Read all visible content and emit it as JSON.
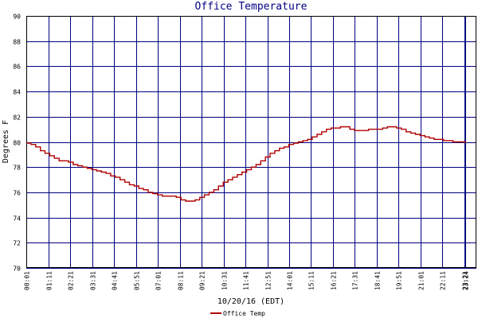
{
  "chart_data": {
    "type": "line",
    "title": "Office Temperature",
    "xlabel": "10/20/16 (EDT)",
    "ylabel": "Degrees F",
    "ylim": [
      70,
      90
    ],
    "yticks": [
      70,
      72,
      74,
      76,
      78,
      80,
      82,
      84,
      86,
      88,
      90
    ],
    "xlim": [
      0,
      1440
    ],
    "xticks": [
      "00:01",
      "01:11",
      "02:21",
      "03:31",
      "04:41",
      "05:51",
      "07:01",
      "08:11",
      "09:21",
      "10:31",
      "11:41",
      "12:51",
      "14:01",
      "15:11",
      "16:21",
      "17:31",
      "18:41",
      "19:51",
      "21:01",
      "22:11",
      "23:21",
      "23:24"
    ],
    "grid": true,
    "legend_position": "bottom-left",
    "colors": {
      "series": "#b00000",
      "grid": "#000080",
      "axes": "#000000",
      "title": "#000080"
    },
    "series": [
      {
        "name": "Office Temp",
        "x": [
          "00:01",
          "00:15",
          "00:30",
          "00:45",
          "01:00",
          "01:15",
          "01:30",
          "01:45",
          "02:00",
          "02:15",
          "02:30",
          "02:45",
          "03:00",
          "03:15",
          "03:30",
          "03:45",
          "04:00",
          "04:15",
          "04:30",
          "04:45",
          "05:00",
          "05:15",
          "05:30",
          "05:45",
          "06:00",
          "06:15",
          "06:30",
          "06:45",
          "07:00",
          "07:15",
          "07:30",
          "07:45",
          "08:00",
          "08:15",
          "08:30",
          "08:45",
          "09:00",
          "09:15",
          "09:30",
          "09:45",
          "10:00",
          "10:15",
          "10:30",
          "10:45",
          "11:00",
          "11:15",
          "11:30",
          "11:45",
          "12:00",
          "12:15",
          "12:30",
          "12:45",
          "13:00",
          "13:15",
          "13:30",
          "13:45",
          "14:00",
          "14:15",
          "14:30",
          "14:45",
          "15:00",
          "15:15",
          "15:30",
          "15:45",
          "16:00",
          "16:15",
          "16:30",
          "16:45",
          "17:00",
          "17:15",
          "17:30",
          "17:45",
          "18:00",
          "18:15",
          "18:30",
          "18:45",
          "19:00",
          "19:15",
          "19:30",
          "19:45",
          "20:00",
          "20:15",
          "20:30",
          "20:45",
          "21:00",
          "21:15",
          "21:30",
          "21:45",
          "22:00",
          "22:15",
          "22:30",
          "22:45",
          "23:00",
          "23:15",
          "23:24"
        ],
        "y": [
          79.9,
          79.8,
          79.6,
          79.3,
          79.1,
          78.9,
          78.7,
          78.5,
          78.5,
          78.4,
          78.2,
          78.1,
          78.0,
          77.9,
          77.8,
          77.7,
          77.6,
          77.5,
          77.3,
          77.2,
          77.0,
          76.8,
          76.6,
          76.5,
          76.3,
          76.2,
          76.0,
          75.9,
          75.8,
          75.7,
          75.7,
          75.7,
          75.6,
          75.4,
          75.3,
          75.3,
          75.4,
          75.6,
          75.8,
          76.0,
          76.2,
          76.5,
          76.8,
          77.0,
          77.2,
          77.4,
          77.6,
          77.8,
          78.0,
          78.2,
          78.5,
          78.8,
          79.1,
          79.3,
          79.5,
          79.6,
          79.8,
          79.9,
          80.0,
          80.1,
          80.2,
          80.4,
          80.6,
          80.8,
          81.0,
          81.1,
          81.1,
          81.2,
          81.2,
          81.0,
          80.9,
          80.9,
          80.9,
          81.0,
          81.0,
          81.0,
          81.1,
          81.2,
          81.2,
          81.1,
          81.0,
          80.8,
          80.7,
          80.6,
          80.5,
          80.4,
          80.3,
          80.2,
          80.2,
          80.1,
          80.1,
          80.0,
          80.0,
          80.0,
          79.9
        ]
      }
    ]
  }
}
